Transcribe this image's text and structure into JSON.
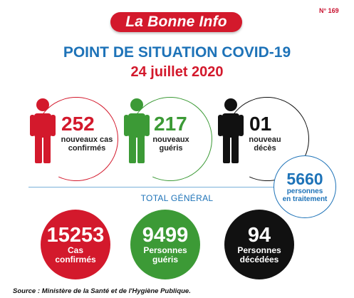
{
  "header": {
    "issue_number": "N° 169",
    "brand": "La Bonne Info",
    "title": "POINT DE SITUATION COVID-19",
    "date": "24 juillet 2020"
  },
  "daily": [
    {
      "value": "252",
      "label_line1": "nouveaux cas",
      "label_line2": "confirmés",
      "color": "#d3192c"
    },
    {
      "value": "217",
      "label_line1": "nouveaux",
      "label_line2": "guéris",
      "color": "#3c9a36"
    },
    {
      "value": "01",
      "label_line1": "nouveau",
      "label_line2": "décès",
      "color": "#111111"
    }
  ],
  "in_treatment": {
    "value": "5660",
    "label_line1": "personnes",
    "label_line2": "en traitement",
    "color": "#1e73b8"
  },
  "total": {
    "label": "TOTAL GÉNÉRAL",
    "items": [
      {
        "value": "15253",
        "label_line1": "Cas",
        "label_line2": "confirmés",
        "color": "#d3192c"
      },
      {
        "value": "9499",
        "label_line1": "Personnes",
        "label_line2": "guéris",
        "color": "#3c9a36"
      },
      {
        "value": "94",
        "label_line1": "Personnes",
        "label_line2": "décédées",
        "color": "#111111"
      }
    ]
  },
  "source": "Source : Ministère de la Santé et de l'Hygiène Publique."
}
